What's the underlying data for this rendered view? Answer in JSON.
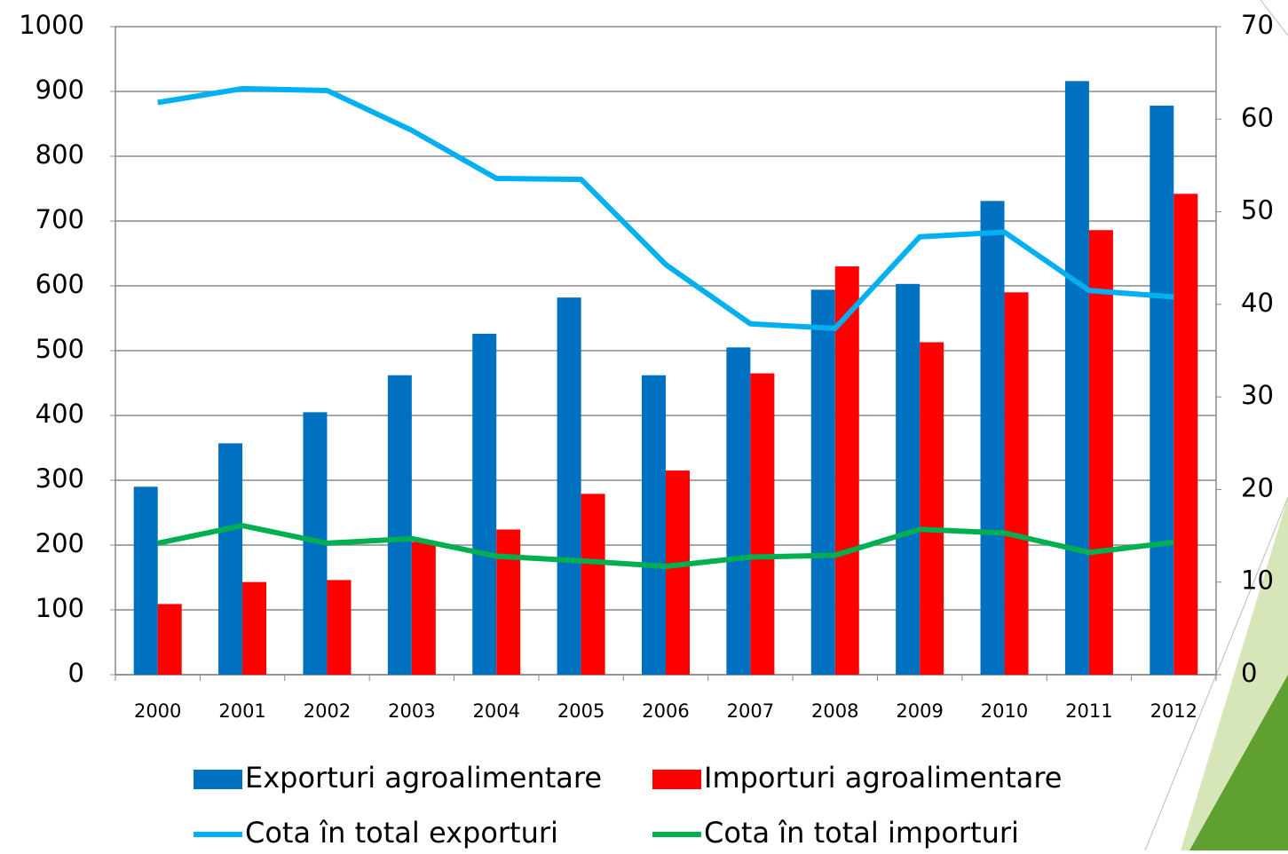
{
  "chart_data": {
    "type": "bar",
    "categories": [
      "2000",
      "2001",
      "2002",
      "2003",
      "2004",
      "2005",
      "2006",
      "2007",
      "2008",
      "2009",
      "2010",
      "2011",
      "2012"
    ],
    "series": [
      {
        "name": "Exporturi agroalimentare",
        "type": "bar",
        "color": "#0070c0",
        "values": [
          290,
          357,
          405,
          462,
          526,
          582,
          462,
          505,
          594,
          603,
          731,
          916,
          878
        ]
      },
      {
        "name": "Importuri agroalimentare",
        "type": "bar",
        "color": "#ff0000",
        "values": [
          109,
          143,
          146,
          205,
          224,
          279,
          315,
          465,
          630,
          513,
          590,
          686,
          742
        ]
      },
      {
        "name": "Cota în total exporturi",
        "type": "line",
        "axis": "y2",
        "color": "#00b0f0",
        "values": [
          61.8,
          63.3,
          63.1,
          58.8,
          53.6,
          53.5,
          44.3,
          37.9,
          37.4,
          47.3,
          47.8,
          41.5,
          40.8
        ]
      },
      {
        "name": "Cota în total importuri",
        "type": "line",
        "axis": "y2",
        "color": "#00b050",
        "values": [
          14.2,
          16.1,
          14.2,
          14.7,
          12.8,
          12.3,
          11.7,
          12.7,
          12.9,
          15.7,
          15.3,
          13.2,
          14.3
        ]
      }
    ],
    "ylim": [
      0,
      1000
    ],
    "yticks": [
      0,
      100,
      200,
      300,
      400,
      500,
      600,
      700,
      800,
      900,
      1000
    ],
    "y2lim": [
      0,
      70
    ],
    "y2ticks": [
      0,
      10,
      20,
      30,
      40,
      50,
      60,
      70
    ],
    "grid": true
  }
}
